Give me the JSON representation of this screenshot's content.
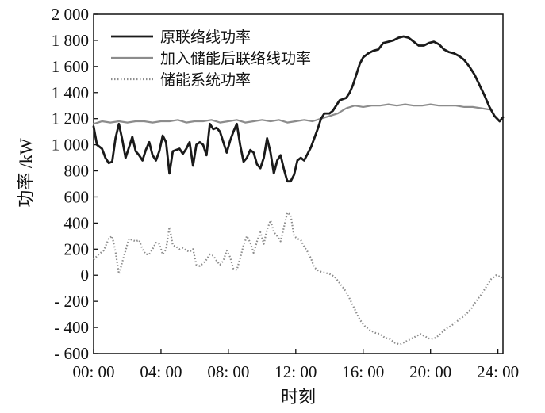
{
  "chart_data": {
    "type": "line",
    "title": "",
    "xlabel": "时刻",
    "ylabel": "功率 /kW",
    "xlim": [
      0,
      24.3
    ],
    "ylim": [
      -600,
      2000
    ],
    "x_ticks": [
      0,
      4,
      8,
      12,
      16,
      20,
      24
    ],
    "x_tick_labels": [
      "00: 00",
      "04: 00",
      "08: 00",
      "12: 00",
      "16: 00",
      "20: 00",
      "24: 00"
    ],
    "y_ticks": [
      -600,
      -400,
      -200,
      0,
      200,
      400,
      600,
      800,
      1000,
      1200,
      1400,
      1600,
      1800,
      2000
    ],
    "y_tick_labels": [
      "- 600",
      "- 400",
      "- 200",
      "0",
      "200",
      "400",
      "600",
      "800",
      "1 000",
      "1 200",
      "1 400",
      "1 600",
      "1 800",
      "2 000"
    ],
    "grid": false,
    "legend": "top-left",
    "series": [
      {
        "name": "原联络线功率",
        "color": "#1a1a1a",
        "style": "solid",
        "points": [
          [
            0.0,
            1140
          ],
          [
            0.2,
            1000
          ],
          [
            0.5,
            970
          ],
          [
            0.7,
            900
          ],
          [
            0.9,
            860
          ],
          [
            1.1,
            870
          ],
          [
            1.3,
            1050
          ],
          [
            1.5,
            1160
          ],
          [
            1.7,
            1040
          ],
          [
            1.9,
            900
          ],
          [
            2.1,
            980
          ],
          [
            2.3,
            1060
          ],
          [
            2.5,
            950
          ],
          [
            2.7,
            920
          ],
          [
            2.9,
            880
          ],
          [
            3.1,
            960
          ],
          [
            3.3,
            1020
          ],
          [
            3.5,
            920
          ],
          [
            3.7,
            880
          ],
          [
            3.9,
            950
          ],
          [
            4.1,
            1070
          ],
          [
            4.3,
            1020
          ],
          [
            4.5,
            780
          ],
          [
            4.7,
            950
          ],
          [
            4.9,
            960
          ],
          [
            5.1,
            970
          ],
          [
            5.3,
            930
          ],
          [
            5.5,
            970
          ],
          [
            5.7,
            1020
          ],
          [
            5.9,
            840
          ],
          [
            6.1,
            1000
          ],
          [
            6.3,
            1020
          ],
          [
            6.5,
            1000
          ],
          [
            6.7,
            920
          ],
          [
            6.9,
            1160
          ],
          [
            7.1,
            1120
          ],
          [
            7.3,
            1130
          ],
          [
            7.5,
            1100
          ],
          [
            7.7,
            1020
          ],
          [
            7.9,
            940
          ],
          [
            8.1,
            1030
          ],
          [
            8.3,
            1100
          ],
          [
            8.5,
            1160
          ],
          [
            8.7,
            1000
          ],
          [
            8.9,
            870
          ],
          [
            9.1,
            900
          ],
          [
            9.3,
            960
          ],
          [
            9.5,
            940
          ],
          [
            9.7,
            850
          ],
          [
            9.9,
            820
          ],
          [
            10.1,
            900
          ],
          [
            10.3,
            1050
          ],
          [
            10.5,
            940
          ],
          [
            10.7,
            780
          ],
          [
            10.9,
            880
          ],
          [
            11.1,
            920
          ],
          [
            11.3,
            810
          ],
          [
            11.5,
            720
          ],
          [
            11.7,
            720
          ],
          [
            11.9,
            770
          ],
          [
            12.1,
            880
          ],
          [
            12.3,
            900
          ],
          [
            12.5,
            880
          ],
          [
            12.7,
            930
          ],
          [
            12.9,
            980
          ],
          [
            13.1,
            1050
          ],
          [
            13.3,
            1120
          ],
          [
            13.5,
            1200
          ],
          [
            13.7,
            1240
          ],
          [
            14.0,
            1240
          ],
          [
            14.2,
            1260
          ],
          [
            14.4,
            1300
          ],
          [
            14.6,
            1340
          ],
          [
            14.8,
            1350
          ],
          [
            15.0,
            1360
          ],
          [
            15.2,
            1400
          ],
          [
            15.4,
            1460
          ],
          [
            15.6,
            1540
          ],
          [
            15.8,
            1620
          ],
          [
            16.0,
            1670
          ],
          [
            16.3,
            1700
          ],
          [
            16.6,
            1720
          ],
          [
            16.9,
            1730
          ],
          [
            17.2,
            1780
          ],
          [
            17.5,
            1790
          ],
          [
            17.8,
            1800
          ],
          [
            18.1,
            1820
          ],
          [
            18.4,
            1830
          ],
          [
            18.7,
            1820
          ],
          [
            19.0,
            1790
          ],
          [
            19.3,
            1760
          ],
          [
            19.6,
            1760
          ],
          [
            19.9,
            1780
          ],
          [
            20.2,
            1790
          ],
          [
            20.5,
            1770
          ],
          [
            20.8,
            1730
          ],
          [
            21.1,
            1710
          ],
          [
            21.4,
            1700
          ],
          [
            21.7,
            1680
          ],
          [
            22.0,
            1650
          ],
          [
            22.3,
            1600
          ],
          [
            22.6,
            1540
          ],
          [
            22.9,
            1460
          ],
          [
            23.2,
            1380
          ],
          [
            23.5,
            1290
          ],
          [
            23.8,
            1220
          ],
          [
            24.1,
            1180
          ],
          [
            24.3,
            1210
          ]
        ]
      },
      {
        "name": "加入储能后联络线功率",
        "color": "#8c8c8c",
        "style": "solid",
        "points": [
          [
            0.0,
            1160
          ],
          [
            0.5,
            1180
          ],
          [
            1.0,
            1170
          ],
          [
            1.5,
            1180
          ],
          [
            2.0,
            1170
          ],
          [
            2.5,
            1180
          ],
          [
            3.0,
            1180
          ],
          [
            3.5,
            1170
          ],
          [
            4.0,
            1180
          ],
          [
            4.5,
            1180
          ],
          [
            5.0,
            1190
          ],
          [
            5.5,
            1170
          ],
          [
            6.0,
            1180
          ],
          [
            6.5,
            1180
          ],
          [
            7.0,
            1190
          ],
          [
            7.5,
            1170
          ],
          [
            8.0,
            1180
          ],
          [
            8.5,
            1190
          ],
          [
            9.0,
            1170
          ],
          [
            9.5,
            1180
          ],
          [
            10.0,
            1190
          ],
          [
            10.5,
            1180
          ],
          [
            11.0,
            1190
          ],
          [
            11.5,
            1170
          ],
          [
            12.0,
            1180
          ],
          [
            12.5,
            1190
          ],
          [
            13.0,
            1180
          ],
          [
            13.5,
            1200
          ],
          [
            14.0,
            1220
          ],
          [
            14.5,
            1240
          ],
          [
            15.0,
            1280
          ],
          [
            15.5,
            1300
          ],
          [
            16.0,
            1290
          ],
          [
            16.5,
            1300
          ],
          [
            17.0,
            1300
          ],
          [
            17.5,
            1310
          ],
          [
            18.0,
            1300
          ],
          [
            18.5,
            1310
          ],
          [
            19.0,
            1300
          ],
          [
            19.5,
            1300
          ],
          [
            20.0,
            1310
          ],
          [
            20.5,
            1300
          ],
          [
            21.0,
            1300
          ],
          [
            21.5,
            1300
          ],
          [
            22.0,
            1290
          ],
          [
            22.5,
            1290
          ],
          [
            23.0,
            1280
          ],
          [
            23.5,
            1270
          ]
        ]
      },
      {
        "name": "储能系统功率",
        "color": "#8c8c8c",
        "style": "dotted",
        "points": [
          [
            0.0,
            120
          ],
          [
            0.3,
            160
          ],
          [
            0.6,
            190
          ],
          [
            0.9,
            280
          ],
          [
            1.1,
            300
          ],
          [
            1.3,
            180
          ],
          [
            1.5,
            10
          ],
          [
            1.7,
            100
          ],
          [
            1.9,
            190
          ],
          [
            2.1,
            280
          ],
          [
            2.3,
            270
          ],
          [
            2.5,
            260
          ],
          [
            2.7,
            270
          ],
          [
            2.9,
            200
          ],
          [
            3.1,
            160
          ],
          [
            3.3,
            160
          ],
          [
            3.5,
            200
          ],
          [
            3.7,
            250
          ],
          [
            3.9,
            240
          ],
          [
            4.1,
            160
          ],
          [
            4.3,
            200
          ],
          [
            4.5,
            370
          ],
          [
            4.7,
            230
          ],
          [
            4.9,
            220
          ],
          [
            5.1,
            200
          ],
          [
            5.3,
            210
          ],
          [
            5.5,
            190
          ],
          [
            5.7,
            180
          ],
          [
            5.9,
            200
          ],
          [
            6.1,
            80
          ],
          [
            6.3,
            70
          ],
          [
            6.5,
            90
          ],
          [
            6.7,
            120
          ],
          [
            6.9,
            160
          ],
          [
            7.1,
            150
          ],
          [
            7.3,
            110
          ],
          [
            7.5,
            80
          ],
          [
            7.7,
            110
          ],
          [
            7.9,
            190
          ],
          [
            8.1,
            140
          ],
          [
            8.3,
            50
          ],
          [
            8.5,
            40
          ],
          [
            8.7,
            130
          ],
          [
            8.9,
            230
          ],
          [
            9.1,
            300
          ],
          [
            9.3,
            250
          ],
          [
            9.5,
            170
          ],
          [
            9.7,
            260
          ],
          [
            9.9,
            330
          ],
          [
            10.1,
            240
          ],
          [
            10.3,
            350
          ],
          [
            10.5,
            420
          ],
          [
            10.7,
            330
          ],
          [
            10.9,
            300
          ],
          [
            11.1,
            260
          ],
          [
            11.3,
            370
          ],
          [
            11.5,
            480
          ],
          [
            11.7,
            460
          ],
          [
            11.9,
            300
          ],
          [
            12.1,
            280
          ],
          [
            12.3,
            270
          ],
          [
            12.5,
            220
          ],
          [
            12.7,
            180
          ],
          [
            12.9,
            130
          ],
          [
            13.1,
            60
          ],
          [
            13.4,
            30
          ],
          [
            13.7,
            20
          ],
          [
            14.0,
            10
          ],
          [
            14.3,
            -10
          ],
          [
            14.6,
            -60
          ],
          [
            14.9,
            -110
          ],
          [
            15.2,
            -180
          ],
          [
            15.5,
            -260
          ],
          [
            15.8,
            -340
          ],
          [
            16.1,
            -390
          ],
          [
            16.4,
            -420
          ],
          [
            16.7,
            -440
          ],
          [
            17.0,
            -450
          ],
          [
            17.3,
            -480
          ],
          [
            17.6,
            -490
          ],
          [
            17.9,
            -520
          ],
          [
            18.2,
            -530
          ],
          [
            18.5,
            -510
          ],
          [
            18.8,
            -490
          ],
          [
            19.1,
            -470
          ],
          [
            19.4,
            -450
          ],
          [
            19.7,
            -470
          ],
          [
            20.0,
            -490
          ],
          [
            20.3,
            -480
          ],
          [
            20.6,
            -450
          ],
          [
            20.9,
            -410
          ],
          [
            21.2,
            -390
          ],
          [
            21.5,
            -360
          ],
          [
            21.8,
            -330
          ],
          [
            22.1,
            -300
          ],
          [
            22.4,
            -260
          ],
          [
            22.7,
            -200
          ],
          [
            23.0,
            -150
          ],
          [
            23.3,
            -90
          ],
          [
            23.6,
            -30
          ],
          [
            23.9,
            0
          ],
          [
            24.1,
            -10
          ],
          [
            24.3,
            -20
          ]
        ]
      }
    ]
  }
}
